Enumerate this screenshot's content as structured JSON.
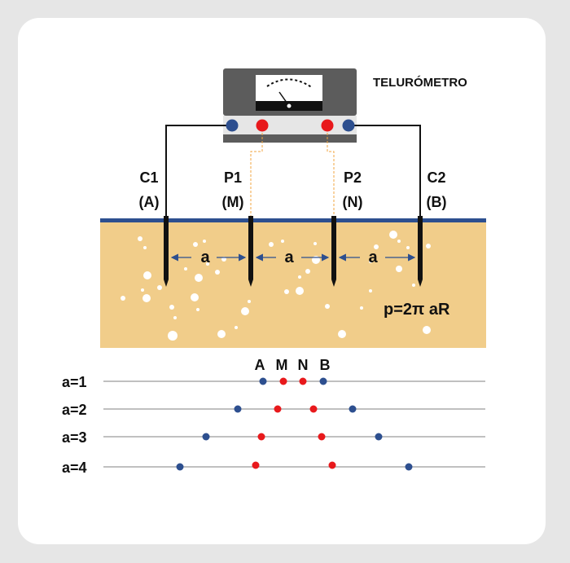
{
  "instrument": {
    "title": "TELURÓMETRO"
  },
  "electrodes": [
    {
      "name": "C1",
      "alias": "(A)"
    },
    {
      "name": "P1",
      "alias": "(M)"
    },
    {
      "name": "P2",
      "alias": "(N)"
    },
    {
      "name": "C2",
      "alias": "(B)"
    }
  ],
  "spacing_label": "a",
  "formula": "p=2π aR",
  "array_header": [
    "A",
    "M",
    "N",
    "B"
  ],
  "rows": [
    {
      "label": "a=1"
    },
    {
      "label": "a=2"
    },
    {
      "label": "a=3"
    },
    {
      "label": "a=4"
    }
  ],
  "colors": {
    "current_electrode": "#2d4f8f",
    "potential_electrode": "#e8191c",
    "soil": "#f1cd8a",
    "ground_line": "#2d4f8f",
    "instrument_body": "#5c5c5c",
    "probe_wire": "#f2a541"
  }
}
